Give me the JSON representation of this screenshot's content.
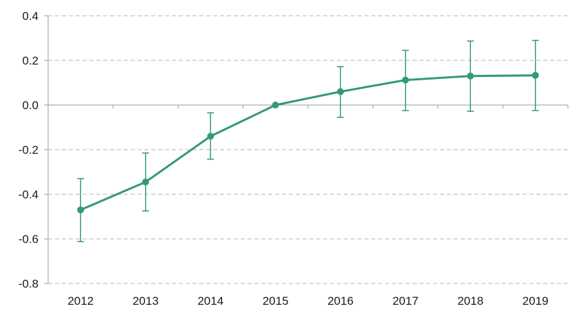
{
  "chart_data": {
    "type": "line",
    "title": "",
    "xlabel": "",
    "ylabel": "",
    "x": [
      "2012",
      "2013",
      "2014",
      "2015",
      "2016",
      "2017",
      "2018",
      "2019"
    ],
    "series": [
      {
        "values": [
          -0.47,
          -0.345,
          -0.14,
          0.0,
          0.06,
          0.112,
          0.13,
          0.133
        ],
        "error_low": [
          -0.612,
          -0.475,
          -0.243,
          0.0,
          -0.055,
          -0.025,
          -0.028,
          -0.025
        ],
        "error_high": [
          -0.33,
          -0.215,
          -0.035,
          0.0,
          0.172,
          0.245,
          0.287,
          0.29
        ],
        "color": "#339977"
      }
    ],
    "ylim": [
      -0.8,
      0.4
    ],
    "yticks": [
      "-0.8",
      "-0.6",
      "-0.4",
      "-0.2",
      "0.0",
      "0.2",
      "0.4"
    ],
    "grid": true,
    "legend": "none"
  }
}
